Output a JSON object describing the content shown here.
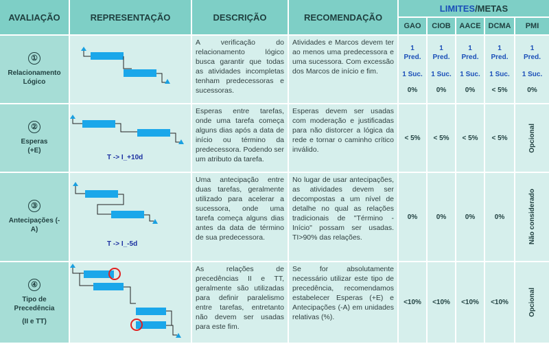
{
  "headers": {
    "avaliacao": "AVALIAÇÃO",
    "representacao": "REPRESENTAÇÃO",
    "descricao": "DESCRIÇÃO",
    "recomendacao": "RECOMENDAÇÃO",
    "limites": "LIMITES",
    "metas": "/METAS",
    "sub": [
      "GAO",
      "CIOB",
      "AACE",
      "DCMA",
      "PMI"
    ]
  },
  "rows": [
    {
      "num": "①",
      "title": "Relacionamento Lógico",
      "descricao": "A verificação do relacionamento lógico busca garantir que todas as atividades incompletas tenham predecessoras e sucessoras.",
      "recomendacao": "Atividades e Marcos devem ter ao menos uma predecessora e uma sucessora. Com excessão dos Marcos de início e fim.",
      "values": [
        {
          "pred": "1 Pred.",
          "suc": "1 Suc.",
          "pct": "0%"
        },
        {
          "pred": "1 Pred.",
          "suc": "1 Suc.",
          "pct": "0%"
        },
        {
          "pred": "1 Pred.",
          "suc": "1 Suc.",
          "pct": "0%"
        },
        {
          "pred": "1 Pred.",
          "suc": "1 Suc.",
          "pct": "< 5%"
        },
        {
          "pred": "1 Pred.",
          "suc": "1 Suc.",
          "pct": "0%"
        }
      ]
    },
    {
      "num": "②",
      "title": "Esperas (+E)",
      "caption": "T -> I_+10d",
      "descricao": "Esperas entre tarefas, onde uma tarefa começa alguns dias após a data de início ou término da predecessora. Podendo ser um atributo da tarefa.",
      "recomendacao": "Esperas devem ser usadas com moderação e justificadas para não distorcer a lógica da rede e tornar o caminho crítico inválido.",
      "values": [
        "< 5%",
        "< 5%",
        "< 5%",
        "< 5%"
      ],
      "pmi": "Opcional"
    },
    {
      "num": "③",
      "title": "Antecipações (-A)",
      "caption": "T -> I_-5d",
      "descricao": "Uma antecipação entre duas tarefas, geralmente utilizado para acelerar a sucessora, onde uma tarefa começa alguns dias antes da data de término de sua predecessora.",
      "recomendacao": "No lugar de usar antecipações, as atividades devem ser decompostas a um nível de detalhe no qual as relações tradicionais de \"Término - Início\" possam ser usadas. TI>90% das relações.",
      "values": [
        "0%",
        "0%",
        "0%",
        "0%"
      ],
      "pmi": "Não considerado"
    },
    {
      "num": "④",
      "title": "Tipo de Precedência",
      "subtitle": "(II e TT)",
      "descricao": "As relações de precedências II e TT, geralmente são utilizadas para definir paralelismo entre tarefas, entretanto não devem ser usadas para este fim.",
      "recomendacao": "Se for absolutamente necessário utilizar este tipo de precedência, recomendamos estabelecer Esperas (+E) e Antecipações (-A) em unidades relativas (%).",
      "values": [
        "<10%",
        "<10%",
        "<10%",
        "<10%"
      ],
      "pmi": "Opcional"
    }
  ]
}
